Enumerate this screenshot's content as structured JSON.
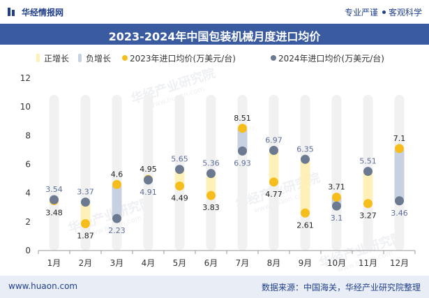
{
  "header": {
    "brand": "华经情报网",
    "tagline_left": "专业严谨",
    "tagline_right": "客观科学",
    "title": "2023-2024年中国包装机械月度进口均价"
  },
  "footer": {
    "site": "www.huaon.com",
    "source": "数据来源：中国海关，华经产业研究院整理"
  },
  "watermark": {
    "text_cn": "华经产业研究院",
    "text_en": "www.huaon.com"
  },
  "colors": {
    "increase_bar": "#fdf0b8",
    "decrease_bar": "#c8d1e2",
    "y2023": "#f6be1d",
    "y2024": "#6b7991",
    "bg_column": "#f1f1f1",
    "header_bg": "#3a5ba0"
  },
  "chart_data": {
    "type": "scatter",
    "title": "2023-2024年中国包装机械月度进口均价",
    "categories": [
      "1月",
      "2月",
      "3月",
      "4月",
      "5月",
      "6月",
      "7月",
      "8月",
      "9月",
      "10月",
      "11月",
      "12月"
    ],
    "series": [
      {
        "name": "2023年进口均价(万美元/台)",
        "values": [
          3.48,
          1.87,
          4.6,
          4.95,
          4.49,
          3.83,
          8.51,
          4.77,
          2.61,
          3.71,
          3.27,
          7.1
        ]
      },
      {
        "name": "2024年进口均价(万美元/台)",
        "values": [
          3.54,
          3.37,
          2.23,
          4.91,
          5.65,
          5.36,
          6.93,
          6.97,
          6.35,
          3.1,
          5.51,
          3.46
        ]
      }
    ],
    "legend": [
      "正增长",
      "负增长",
      "2023年进口均价(万美元/台)",
      "2024年进口均价(万美元/台)"
    ],
    "ylim": [
      0,
      12
    ],
    "yticks": [
      0,
      2,
      4,
      6,
      8,
      10,
      12
    ],
    "xlabel": "",
    "ylabel": ""
  }
}
